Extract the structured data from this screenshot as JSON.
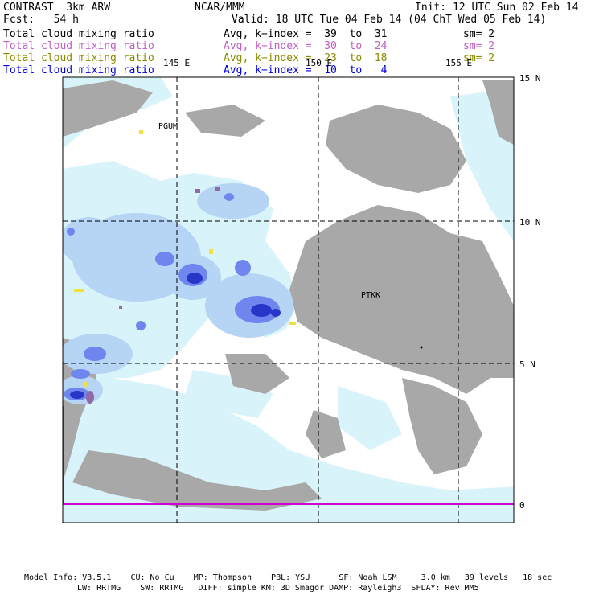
{
  "header": {
    "model": "CONTRAST  3km ARW",
    "org": "NCAR/MMM",
    "init": "Init: 12 UTC Sun 02 Feb 14",
    "fcst": "Fcst:   54 h",
    "valid": "Valid: 18 UTC Tue 04 Feb 14 (04 ChT Wed 05 Feb 14)"
  },
  "fields": [
    {
      "name": "Total cloud mixing ratio",
      "avg": "Avg, k−index =  39  to  31",
      "sm": "sm= 2",
      "color": "#000000"
    },
    {
      "name": "Total cloud mixing ratio",
      "avg": "Avg, k−index =  30  to  24",
      "sm": "sm= 2",
      "color": "#c060c0"
    },
    {
      "name": "Total cloud mixing ratio",
      "avg": "Avg, k−index =  23  to  18",
      "sm": "sm= 2",
      "color": "#8a8a00"
    },
    {
      "name": "Total cloud mixing ratio",
      "avg": "Avg, k−index =  10  to   4",
      "sm": "",
      "color": "#0000e0"
    }
  ],
  "map": {
    "lon_labels": [
      "145 E",
      "150 E",
      "155 E"
    ],
    "lat_labels": [
      "15 N",
      "10 N",
      "5 N",
      "0"
    ],
    "stations": [
      "PGUM",
      "PTKK"
    ]
  },
  "footer": {
    "line1": "Model Info: V3.5.1    CU: No Cu    MP: Thompson    PBL: YSU      SF: Noah LSM     3.0 km   39 levels   18 sec",
    "line2": "LW: RRTMG    SW: RRTMG   DIFF: simple KM: 3D Smagor DAMP: Rayleigh3  SFLAY: Rev MM5"
  },
  "colors": {
    "cloud_gray": "#a8a8a8",
    "light_cyan": "#d8f4fa",
    "light_blue": "#b6d4f4",
    "mid_blue": "#6e86ee",
    "dark_blue": "#2836c8",
    "equator_line": "#d000d0"
  }
}
